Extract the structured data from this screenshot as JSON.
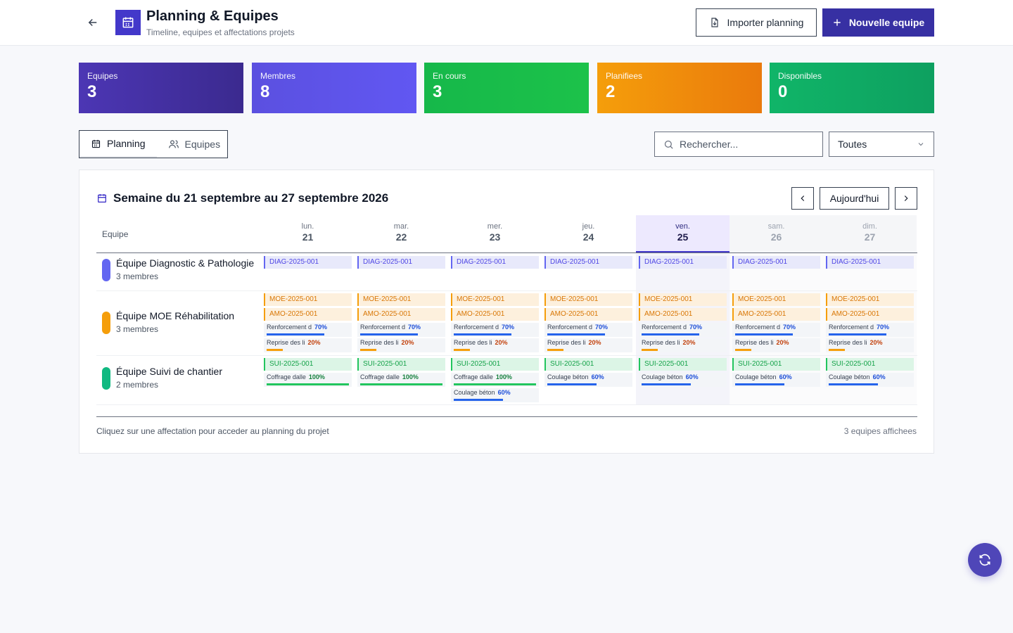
{
  "header": {
    "title": "Planning & Equipes",
    "subtitle": "Timeline, equipes et affectations projets",
    "import_label": "Importer planning",
    "new_label": "Nouvelle equipe"
  },
  "stats": [
    {
      "label": "Equipes",
      "value": "3"
    },
    {
      "label": "Membres",
      "value": "8"
    },
    {
      "label": "En cours",
      "value": "3"
    },
    {
      "label": "Planifiees",
      "value": "2"
    },
    {
      "label": "Disponibles",
      "value": "0"
    }
  ],
  "tabs": [
    {
      "label": "Planning",
      "icon": "calendar-icon"
    },
    {
      "label": "Equipes",
      "icon": "users-icon"
    }
  ],
  "search": {
    "placeholder": "Rechercher..."
  },
  "filter": {
    "selected": "Toutes"
  },
  "calendar": {
    "week_title": "Semaine du 21 septembre au 27 septembre 2026",
    "today_label": "Aujourd'hui",
    "team_column": "Equipe",
    "days": [
      {
        "name": "lun.",
        "num": "21",
        "kind": "normal"
      },
      {
        "name": "mar.",
        "num": "22",
        "kind": "normal"
      },
      {
        "name": "mer.",
        "num": "23",
        "kind": "normal"
      },
      {
        "name": "jeu.",
        "num": "24",
        "kind": "normal"
      },
      {
        "name": "ven.",
        "num": "25",
        "kind": "today"
      },
      {
        "name": "sam.",
        "num": "26",
        "kind": "weekend"
      },
      {
        "name": "dim.",
        "num": "27",
        "kind": "weekend"
      }
    ],
    "teams": [
      {
        "name": "Équipe Diagnostic & Pathologie",
        "members": "3 membres",
        "color": "#6366f1",
        "days": [
          [
            {
              "kind": "chip",
              "type": "diag",
              "label": "DIAG-2025-001"
            }
          ],
          [
            {
              "kind": "chip",
              "type": "diag",
              "label": "DIAG-2025-001"
            }
          ],
          [
            {
              "kind": "chip",
              "type": "diag",
              "label": "DIAG-2025-001"
            }
          ],
          [
            {
              "kind": "chip",
              "type": "diag",
              "label": "DIAG-2025-001"
            }
          ],
          [
            {
              "kind": "chip",
              "type": "diag",
              "label": "DIAG-2025-001"
            }
          ],
          [
            {
              "kind": "chip",
              "type": "diag",
              "label": "DIAG-2025-001"
            }
          ],
          [
            {
              "kind": "chip",
              "type": "diag",
              "label": "DIAG-2025-001"
            }
          ]
        ]
      },
      {
        "name": "Équipe MOE Réhabilitation",
        "members": "3 membres",
        "color": "#f59e0b",
        "days": [
          [
            {
              "kind": "chip",
              "type": "moe",
              "label": "MOE-2025-001"
            },
            {
              "kind": "chip",
              "type": "amo",
              "label": "AMO-2025-001"
            },
            {
              "kind": "task",
              "label": "Renforcement d",
              "pct": "70%",
              "progress": 0.7,
              "color": "#2563eb"
            },
            {
              "kind": "task",
              "label": "Reprise des li",
              "pct": "20%",
              "progress": 0.2,
              "color": "#f59e0b"
            }
          ],
          [
            {
              "kind": "chip",
              "type": "moe",
              "label": "MOE-2025-001"
            },
            {
              "kind": "chip",
              "type": "amo",
              "label": "AMO-2025-001"
            },
            {
              "kind": "task",
              "label": "Renforcement d",
              "pct": "70%",
              "progress": 0.7,
              "color": "#2563eb"
            },
            {
              "kind": "task",
              "label": "Reprise des li",
              "pct": "20%",
              "progress": 0.2,
              "color": "#f59e0b"
            }
          ],
          [
            {
              "kind": "chip",
              "type": "moe",
              "label": "MOE-2025-001"
            },
            {
              "kind": "chip",
              "type": "amo",
              "label": "AMO-2025-001"
            },
            {
              "kind": "task",
              "label": "Renforcement d",
              "pct": "70%",
              "progress": 0.7,
              "color": "#2563eb"
            },
            {
              "kind": "task",
              "label": "Reprise des li",
              "pct": "20%",
              "progress": 0.2,
              "color": "#f59e0b"
            }
          ],
          [
            {
              "kind": "chip",
              "type": "moe",
              "label": "MOE-2025-001"
            },
            {
              "kind": "chip",
              "type": "amo",
              "label": "AMO-2025-001"
            },
            {
              "kind": "task",
              "label": "Renforcement d",
              "pct": "70%",
              "progress": 0.7,
              "color": "#2563eb"
            },
            {
              "kind": "task",
              "label": "Reprise des li",
              "pct": "20%",
              "progress": 0.2,
              "color": "#f59e0b"
            }
          ],
          [
            {
              "kind": "chip",
              "type": "moe",
              "label": "MOE-2025-001"
            },
            {
              "kind": "chip",
              "type": "amo",
              "label": "AMO-2025-001"
            },
            {
              "kind": "task",
              "label": "Renforcement d",
              "pct": "70%",
              "progress": 0.7,
              "color": "#2563eb"
            },
            {
              "kind": "task",
              "label": "Reprise des li",
              "pct": "20%",
              "progress": 0.2,
              "color": "#f59e0b"
            }
          ],
          [
            {
              "kind": "chip",
              "type": "moe",
              "label": "MOE-2025-001"
            },
            {
              "kind": "chip",
              "type": "amo",
              "label": "AMO-2025-001"
            },
            {
              "kind": "task",
              "label": "Renforcement d",
              "pct": "70%",
              "progress": 0.7,
              "color": "#2563eb"
            },
            {
              "kind": "task",
              "label": "Reprise des li",
              "pct": "20%",
              "progress": 0.2,
              "color": "#f59e0b"
            }
          ],
          [
            {
              "kind": "chip",
              "type": "moe",
              "label": "MOE-2025-001"
            },
            {
              "kind": "chip",
              "type": "amo",
              "label": "AMO-2025-001"
            },
            {
              "kind": "task",
              "label": "Renforcement d",
              "pct": "70%",
              "progress": 0.7,
              "color": "#2563eb"
            },
            {
              "kind": "task",
              "label": "Reprise des li",
              "pct": "20%",
              "progress": 0.2,
              "color": "#f59e0b"
            }
          ]
        ]
      },
      {
        "name": "Équipe Suivi de chantier",
        "members": "2 membres",
        "color": "#10b981",
        "days": [
          [
            {
              "kind": "chip",
              "type": "sui",
              "label": "SUI-2025-001"
            },
            {
              "kind": "task",
              "label": "Coffrage dalle",
              "pct": "100%",
              "progress": 1,
              "color": "#22c55e"
            }
          ],
          [
            {
              "kind": "chip",
              "type": "sui",
              "label": "SUI-2025-001"
            },
            {
              "kind": "task",
              "label": "Coffrage dalle",
              "pct": "100%",
              "progress": 1,
              "color": "#22c55e"
            }
          ],
          [
            {
              "kind": "chip",
              "type": "sui",
              "label": "SUI-2025-001"
            },
            {
              "kind": "task",
              "label": "Coffrage dalle",
              "pct": "100%",
              "progress": 1,
              "color": "#22c55e"
            },
            {
              "kind": "task",
              "label": "Coulage béton",
              "pct": "60%",
              "progress": 0.6,
              "color": "#2563eb"
            }
          ],
          [
            {
              "kind": "chip",
              "type": "sui",
              "label": "SUI-2025-001"
            },
            {
              "kind": "task",
              "label": "Coulage béton",
              "pct": "60%",
              "progress": 0.6,
              "color": "#2563eb"
            }
          ],
          [
            {
              "kind": "chip",
              "type": "sui",
              "label": "SUI-2025-001"
            },
            {
              "kind": "task",
              "label": "Coulage béton",
              "pct": "60%",
              "progress": 0.6,
              "color": "#2563eb"
            }
          ],
          [
            {
              "kind": "chip",
              "type": "sui",
              "label": "SUI-2025-001"
            },
            {
              "kind": "task",
              "label": "Coulage béton",
              "pct": "60%",
              "progress": 0.6,
              "color": "#2563eb"
            }
          ],
          [
            {
              "kind": "chip",
              "type": "sui",
              "label": "SUI-2025-001"
            },
            {
              "kind": "task",
              "label": "Coulage béton",
              "pct": "60%",
              "progress": 0.6,
              "color": "#2563eb"
            }
          ]
        ]
      }
    ],
    "footer_hint": "Cliquez sur une affectation pour acceder au planning du projet",
    "footer_count": "3 equipes affichees"
  }
}
